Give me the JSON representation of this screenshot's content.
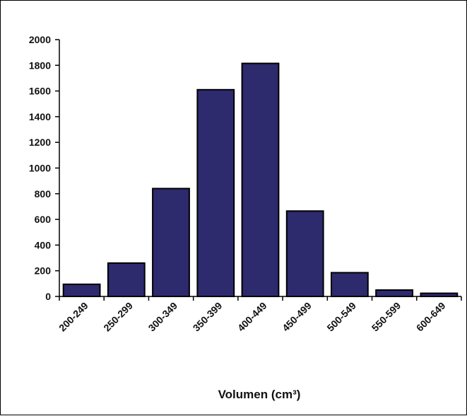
{
  "chart_data": {
    "type": "bar",
    "categories": [
      "200-249",
      "250-299",
      "300-349",
      "350-399",
      "400-449",
      "450-499",
      "500-549",
      "550-599",
      "600-649"
    ],
    "values": [
      95,
      260,
      840,
      1610,
      1815,
      665,
      185,
      50,
      25
    ],
    "yticks": [
      "0",
      "200",
      "400",
      "600",
      "800",
      "1000",
      "1200",
      "1400",
      "1600",
      "1800",
      "2000"
    ],
    "xlabel": "Volumen (cm³)",
    "ylabel": "",
    "title": "",
    "ylim": [
      0,
      2000
    ],
    "grid": false,
    "legend": "none",
    "colors": {
      "bar_fill": "#2E2A6E",
      "bar_stroke": "#000000",
      "axis": "#000000"
    }
  }
}
